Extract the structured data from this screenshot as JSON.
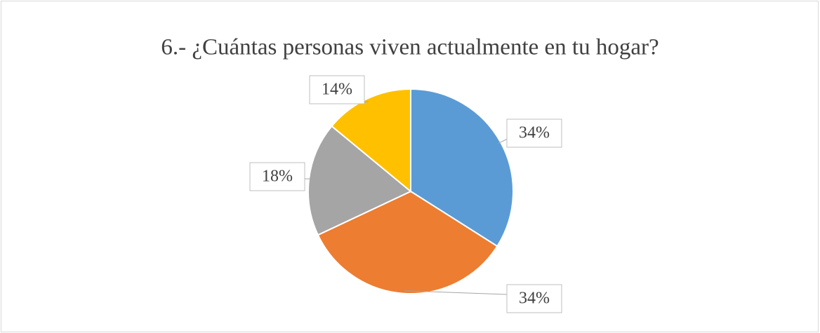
{
  "chart_data": {
    "type": "pie",
    "title": "6.- ¿Cuántas personas viven actualmente en tu hogar?",
    "values": [
      34,
      34,
      18,
      14
    ],
    "value_labels": [
      "34%",
      "34%",
      "18%",
      "14%"
    ],
    "colors": [
      "#5b9bd5",
      "#ed7d31",
      "#a5a5a5",
      "#ffc000"
    ]
  }
}
